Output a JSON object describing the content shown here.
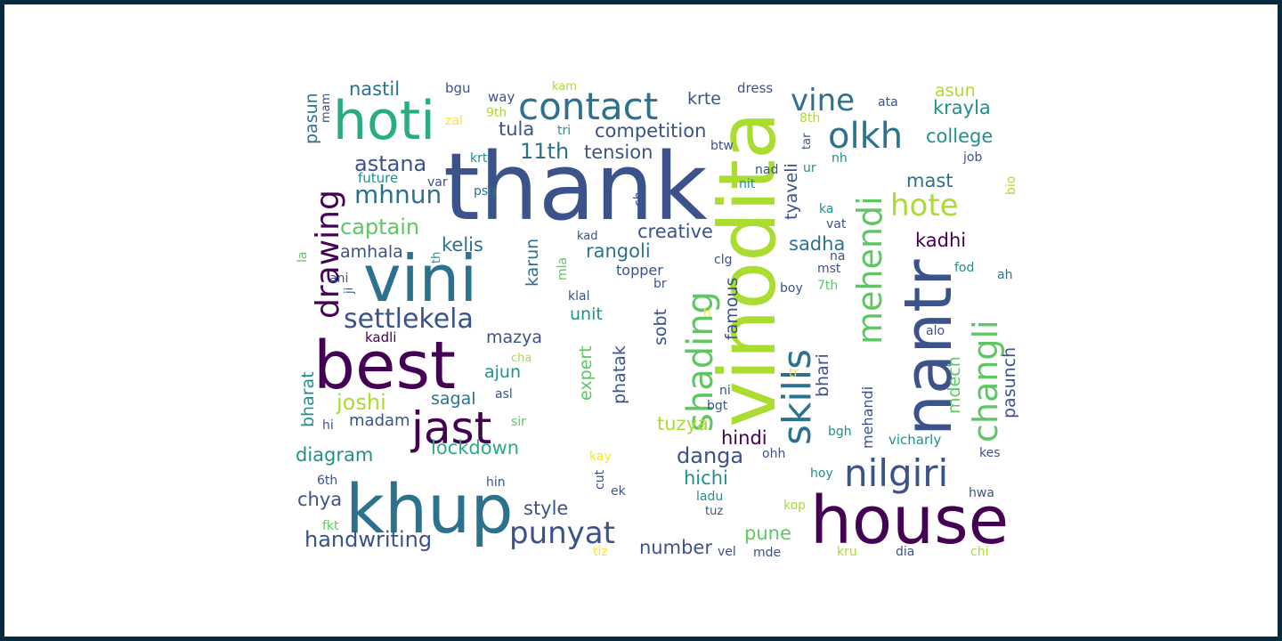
{
  "background_color": "#ffffff",
  "border_color": "#062a3c",
  "palette": [
    "#440154",
    "#3b528b",
    "#2c728e",
    "#21908d",
    "#27ad81",
    "#5dc863",
    "#aadc32",
    "#fde725"
  ],
  "words": [
    {
      "text": "thank",
      "color": "#3b528b"
    },
    {
      "text": "vinodita",
      "color": "#aadc32"
    },
    {
      "text": "house",
      "color": "#440154"
    },
    {
      "text": "khup",
      "color": "#2c728e"
    },
    {
      "text": "vini",
      "color": "#2c728e"
    },
    {
      "text": "best",
      "color": "#440154"
    },
    {
      "text": "nantr",
      "color": "#3b528b"
    },
    {
      "text": "hoti",
      "color": "#27ad81"
    },
    {
      "text": "jast",
      "color": "#440154"
    },
    {
      "text": "nilgiri",
      "color": "#3b528b"
    },
    {
      "text": "contact",
      "color": "#2c728e"
    },
    {
      "text": "skills",
      "color": "#2c728e"
    },
    {
      "text": "shading",
      "color": "#5dc863"
    },
    {
      "text": "mehendi",
      "color": "#5dc863"
    },
    {
      "text": "changli",
      "color": "#5dc863"
    },
    {
      "text": "drawing",
      "color": "#440154"
    },
    {
      "text": "olkh",
      "color": "#2c728e"
    },
    {
      "text": "settlekela",
      "color": "#3b528b"
    },
    {
      "text": "punyat",
      "color": "#3b528b"
    },
    {
      "text": "vine",
      "color": "#2c728e"
    },
    {
      "text": "hote",
      "color": "#aadc32"
    },
    {
      "text": "mhnun",
      "color": "#2c728e"
    },
    {
      "text": "handwriting",
      "color": "#3b528b"
    },
    {
      "text": "captain",
      "color": "#5dc863"
    },
    {
      "text": "astana",
      "color": "#3b528b"
    },
    {
      "text": "11th",
      "color": "#2c728e"
    },
    {
      "text": "competition",
      "color": "#3b528b"
    },
    {
      "text": "joshi",
      "color": "#aadc32"
    },
    {
      "text": "lockdown",
      "color": "#27ad81"
    },
    {
      "text": "nastil",
      "color": "#2c728e"
    },
    {
      "text": "tension",
      "color": "#3b528b"
    },
    {
      "text": "tula",
      "color": "#3b528b"
    },
    {
      "text": "creative",
      "color": "#3b528b"
    },
    {
      "text": "rangoli",
      "color": "#2c728e"
    },
    {
      "text": "danga",
      "color": "#3b528b"
    },
    {
      "text": "hichi",
      "color": "#21908d"
    },
    {
      "text": "diagram",
      "color": "#21908d"
    },
    {
      "text": "style",
      "color": "#3b528b"
    },
    {
      "text": "college",
      "color": "#21908d"
    },
    {
      "text": "krayla",
      "color": "#21908d"
    },
    {
      "text": "asun",
      "color": "#aadc32"
    },
    {
      "text": "mast",
      "color": "#2c728e"
    },
    {
      "text": "kadhi",
      "color": "#440154"
    },
    {
      "text": "sadha",
      "color": "#2c728e"
    },
    {
      "text": "tuzya",
      "color": "#aadc32"
    },
    {
      "text": "hindi",
      "color": "#440154"
    },
    {
      "text": "number",
      "color": "#3b528b"
    },
    {
      "text": "pune",
      "color": "#5dc863"
    },
    {
      "text": "chya",
      "color": "#3b528b"
    },
    {
      "text": "madam",
      "color": "#3b528b"
    },
    {
      "text": "sagal",
      "color": "#2c728e"
    },
    {
      "text": "ajun",
      "color": "#21908d"
    },
    {
      "text": "mazya",
      "color": "#3b528b"
    },
    {
      "text": "kelis",
      "color": "#2c728e"
    },
    {
      "text": "amhala",
      "color": "#3b528b"
    },
    {
      "text": "unit",
      "color": "#21908d"
    },
    {
      "text": "krte",
      "color": "#3b528b"
    },
    {
      "text": "topper",
      "color": "#3b528b"
    },
    {
      "text": "karun",
      "color": "#2c728e"
    },
    {
      "text": "famous",
      "color": "#3b528b"
    },
    {
      "text": "sobt",
      "color": "#3b528b"
    },
    {
      "text": "phatak",
      "color": "#3b528b"
    },
    {
      "text": "expert",
      "color": "#5dc863"
    },
    {
      "text": "pasunch",
      "color": "#3b528b"
    },
    {
      "text": "mdech",
      "color": "#5dc863"
    },
    {
      "text": "bhari",
      "color": "#3b528b"
    },
    {
      "text": "mehandi",
      "color": "#3b528b"
    },
    {
      "text": "tyaveli",
      "color": "#3b528b"
    },
    {
      "text": "pasun",
      "color": "#2c728e"
    },
    {
      "text": "bharat",
      "color": "#21908d"
    },
    {
      "text": "vicharly",
      "color": "#21908d"
    },
    {
      "text": "kadli",
      "color": "#440154"
    },
    {
      "text": "future",
      "color": "#21908d"
    },
    {
      "text": "dress",
      "color": "#3b528b"
    },
    {
      "text": "way",
      "color": "#3b528b"
    },
    {
      "text": "bgu",
      "color": "#3b528b"
    },
    {
      "text": "mam",
      "color": "#3b528b"
    },
    {
      "text": "kam",
      "color": "#aadc32"
    },
    {
      "text": "zal",
      "color": "#fde725"
    },
    {
      "text": "9th",
      "color": "#aadc32"
    },
    {
      "text": "tri",
      "color": "#21908d"
    },
    {
      "text": "8th",
      "color": "#aadc32"
    },
    {
      "text": "ata",
      "color": "#3b528b"
    },
    {
      "text": "tar",
      "color": "#3b528b"
    },
    {
      "text": "btw",
      "color": "#3b528b"
    },
    {
      "text": "krt",
      "color": "#21908d"
    },
    {
      "text": "nad",
      "color": "#3b528b"
    },
    {
      "text": "ur",
      "color": "#21908d"
    },
    {
      "text": "nh",
      "color": "#21908d"
    },
    {
      "text": "job",
      "color": "#3b528b"
    },
    {
      "text": "var",
      "color": "#3b528b"
    },
    {
      "text": "psg",
      "color": "#2c728e"
    },
    {
      "text": "nit",
      "color": "#21908d"
    },
    {
      "text": "bio",
      "color": "#aadc32"
    },
    {
      "text": "ch",
      "color": "#3b528b"
    },
    {
      "text": "ka",
      "color": "#21908d"
    },
    {
      "text": "vat",
      "color": "#3b528b"
    },
    {
      "text": "kad",
      "color": "#3b528b"
    },
    {
      "text": "na",
      "color": "#3b528b"
    },
    {
      "text": "la",
      "color": "#5dc863"
    },
    {
      "text": "th",
      "color": "#21908d"
    },
    {
      "text": "mla",
      "color": "#5dc863"
    },
    {
      "text": "clg",
      "color": "#3b528b"
    },
    {
      "text": "mst",
      "color": "#3b528b"
    },
    {
      "text": "fod",
      "color": "#21908d"
    },
    {
      "text": "ah",
      "color": "#2c728e"
    },
    {
      "text": "ani",
      "color": "#3b528b"
    },
    {
      "text": "ji",
      "color": "#3b528b"
    },
    {
      "text": "klal",
      "color": "#3b528b"
    },
    {
      "text": "br",
      "color": "#3b528b"
    },
    {
      "text": "boy",
      "color": "#3b528b"
    },
    {
      "text": "7th",
      "color": "#5dc863"
    },
    {
      "text": "ti",
      "color": "#fde725"
    },
    {
      "text": "alo",
      "color": "#3b528b"
    },
    {
      "text": "cha",
      "color": "#aadc32"
    },
    {
      "text": "tr",
      "color": "#fde725"
    },
    {
      "text": "ni",
      "color": "#3b528b"
    },
    {
      "text": "asl",
      "color": "#3b528b"
    },
    {
      "text": "bgt",
      "color": "#3b528b"
    },
    {
      "text": "hi",
      "color": "#3b528b"
    },
    {
      "text": "sir",
      "color": "#5dc863"
    },
    {
      "text": "bgh",
      "color": "#21908d"
    },
    {
      "text": "ohh",
      "color": "#3b528b"
    },
    {
      "text": "kay",
      "color": "#fde725"
    },
    {
      "text": "kes",
      "color": "#3b528b"
    },
    {
      "text": "cut",
      "color": "#3b528b"
    },
    {
      "text": "hoy",
      "color": "#21908d"
    },
    {
      "text": "6th",
      "color": "#3b528b"
    },
    {
      "text": "hin",
      "color": "#3b528b"
    },
    {
      "text": "ek",
      "color": "#3b528b"
    },
    {
      "text": "ladu",
      "color": "#21908d"
    },
    {
      "text": "hwa",
      "color": "#3b528b"
    },
    {
      "text": "tuz",
      "color": "#3b528b"
    },
    {
      "text": "kop",
      "color": "#aadc32"
    },
    {
      "text": "fkt",
      "color": "#5dc863"
    },
    {
      "text": "vel",
      "color": "#3b528b"
    },
    {
      "text": "mde",
      "color": "#3b528b"
    },
    {
      "text": "tiz",
      "color": "#fde725"
    },
    {
      "text": "kru",
      "color": "#aadc32"
    },
    {
      "text": "dia",
      "color": "#3b528b"
    },
    {
      "text": "chi",
      "color": "#aadc32"
    }
  ]
}
